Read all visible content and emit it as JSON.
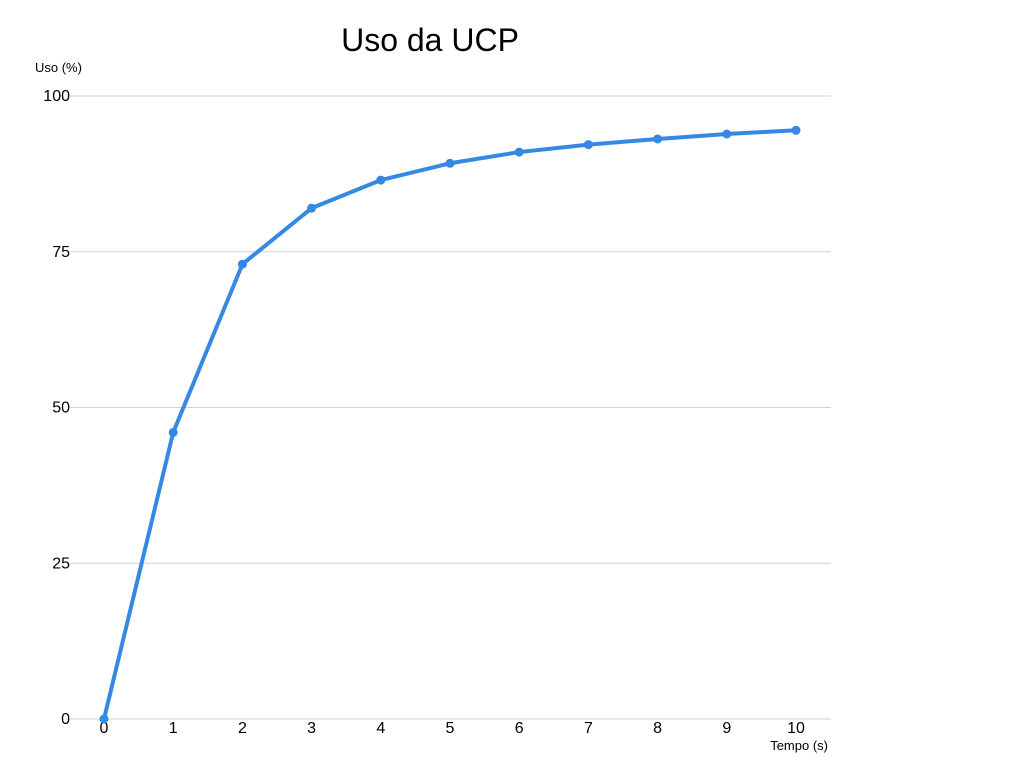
{
  "chart_data": {
    "type": "line",
    "title": "Uso da UCP",
    "xlabel": "Tempo (s)",
    "ylabel": "Uso (%)",
    "x": [
      0,
      1,
      2,
      3,
      4,
      5,
      6,
      7,
      8,
      9,
      10
    ],
    "series": [
      {
        "name": "",
        "values": [
          0,
          46,
          73,
          82,
          86.5,
          89.2,
          91,
          92.2,
          93.1,
          93.9,
          94.5
        ],
        "color": "#3589e2"
      }
    ],
    "ylim": [
      0,
      100
    ],
    "yticks": [
      0,
      25,
      50,
      75,
      100
    ],
    "xticks": [
      0,
      1,
      2,
      3,
      4,
      5,
      6,
      7,
      8,
      9,
      10
    ],
    "grid": "horizontal",
    "legend": "none"
  }
}
